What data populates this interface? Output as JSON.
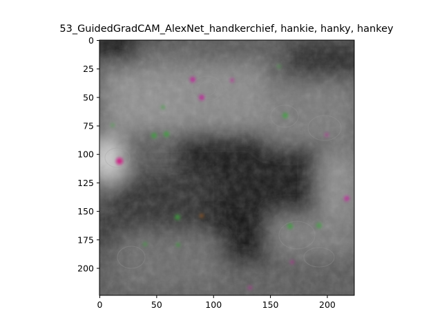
{
  "figure": {
    "title": "53_GuidedGradCAM_AlexNet_handkerchief, hankie, hanky, hankey"
  },
  "axes": {
    "x_ticks": [
      "0",
      "50",
      "100",
      "150",
      "200"
    ],
    "y_ticks": [
      "0",
      "25",
      "50",
      "75",
      "100",
      "125",
      "150",
      "175",
      "200"
    ],
    "xlim": [
      0,
      224
    ],
    "ylim": [
      0,
      224
    ]
  },
  "image": {
    "description_colors": {
      "base_dark": "#1a1a1a",
      "base_mid": "#6e6e6e",
      "highlight": "#c8c8c8",
      "magenta_speck": "#c0209a",
      "green_speck": "#40a040"
    }
  }
}
